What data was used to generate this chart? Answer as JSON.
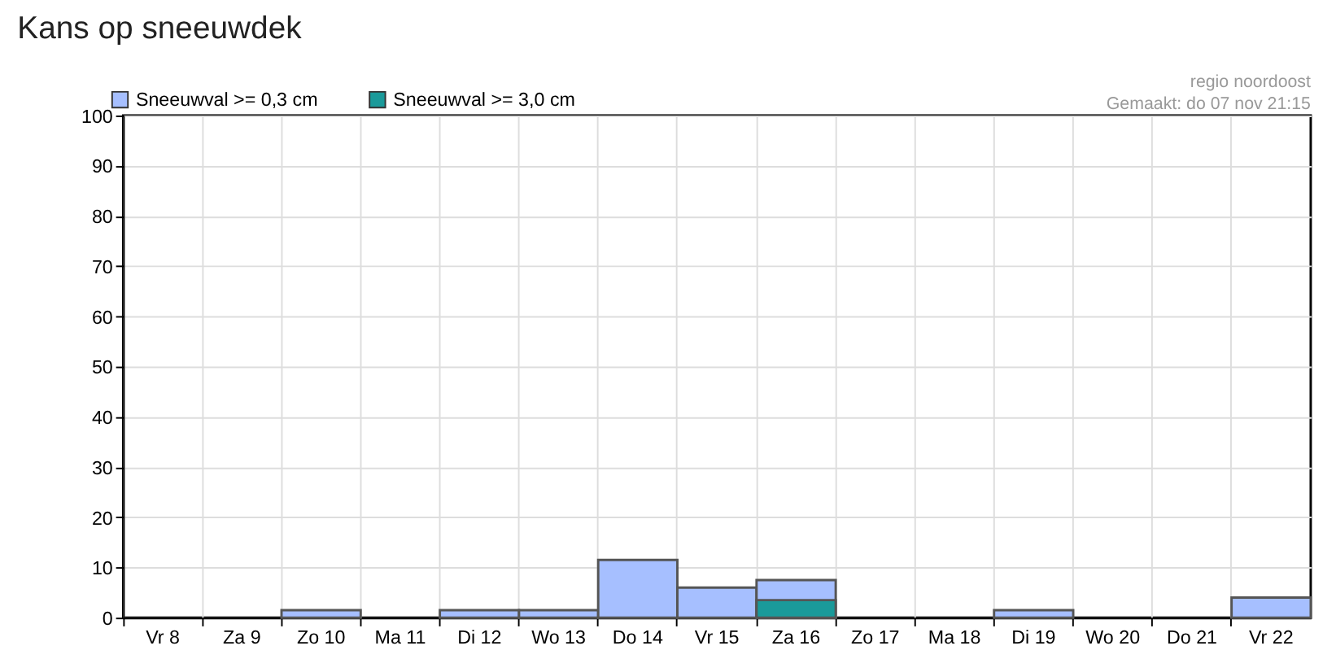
{
  "chart_data": {
    "type": "bar",
    "title": "Kans op sneeuwdek",
    "categories": [
      "Vr 8",
      "Za 9",
      "Zo 10",
      "Ma 11",
      "Di 12",
      "Wo 13",
      "Do 14",
      "Vr 15",
      "Za 16",
      "Zo 17",
      "Ma 18",
      "Di 19",
      "Wo 20",
      "Do 21",
      "Vr 22"
    ],
    "series": [
      {
        "name": "Sneeuwval >= 0,3 cm",
        "color": "#a6bfff",
        "values": [
          null,
          null,
          1.5,
          null,
          1.5,
          1.5,
          11.5,
          6,
          7.5,
          null,
          null,
          1.5,
          null,
          null,
          4
        ]
      },
      {
        "name": "Sneeuwval >= 3,0 cm",
        "color": "#1a9a9a",
        "values": [
          null,
          null,
          null,
          null,
          null,
          null,
          null,
          null,
          3.5,
          null,
          null,
          null,
          null,
          null,
          null
        ]
      }
    ],
    "annotations": [
      "regio noordoost",
      "Gemaakt: do 07 nov 21:15"
    ],
    "ylim": [
      0,
      100
    ],
    "yticks": [
      0,
      10,
      20,
      30,
      40,
      50,
      60,
      70,
      80,
      90,
      100
    ],
    "grid": true,
    "legend": "top left"
  }
}
